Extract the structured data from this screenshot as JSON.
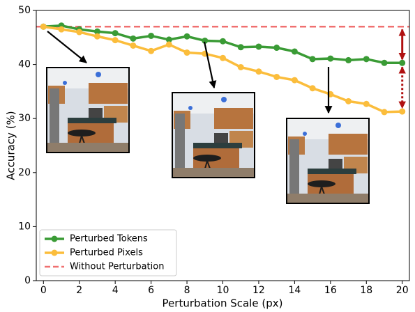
{
  "chart_data": {
    "type": "line",
    "xlabel": "Perturbation Scale (px)",
    "ylabel": "Accuracy (%)",
    "x": [
      0,
      1,
      2,
      3,
      4,
      5,
      6,
      7,
      8,
      9,
      10,
      11,
      12,
      13,
      14,
      15,
      16,
      17,
      18,
      19,
      20
    ],
    "series": [
      {
        "name": "Perturbed Tokens",
        "color": "#3a9b35",
        "values": [
          47,
          47.2,
          46.5,
          46.1,
          45.8,
          44.8,
          45.3,
          44.6,
          45.2,
          44.4,
          44.3,
          43.2,
          43.3,
          43.1,
          42.4,
          41,
          41.1,
          40.8,
          41,
          40.3,
          40.3
        ]
      },
      {
        "name": "Perturbed Pixels",
        "color": "#fbbd3c",
        "values": [
          47,
          46.5,
          46,
          45.2,
          44.5,
          43.5,
          42.5,
          43.7,
          42.2,
          42,
          41.2,
          39.5,
          38.7,
          37.7,
          37.1,
          35.6,
          34.5,
          33.2,
          32.7,
          31.2,
          31.3
        ]
      }
    ],
    "reference": {
      "name": "Without Perturbation",
      "color": "#f07070",
      "value": 47
    },
    "xlim": [
      -0.4,
      20.4
    ],
    "xticks": [
      0,
      2,
      4,
      6,
      8,
      10,
      12,
      14,
      16,
      18,
      20
    ],
    "ylim": [
      0,
      50
    ],
    "yticks": [
      0,
      10,
      20,
      30,
      40,
      50
    ],
    "legend": "lower left",
    "grid": false
  }
}
